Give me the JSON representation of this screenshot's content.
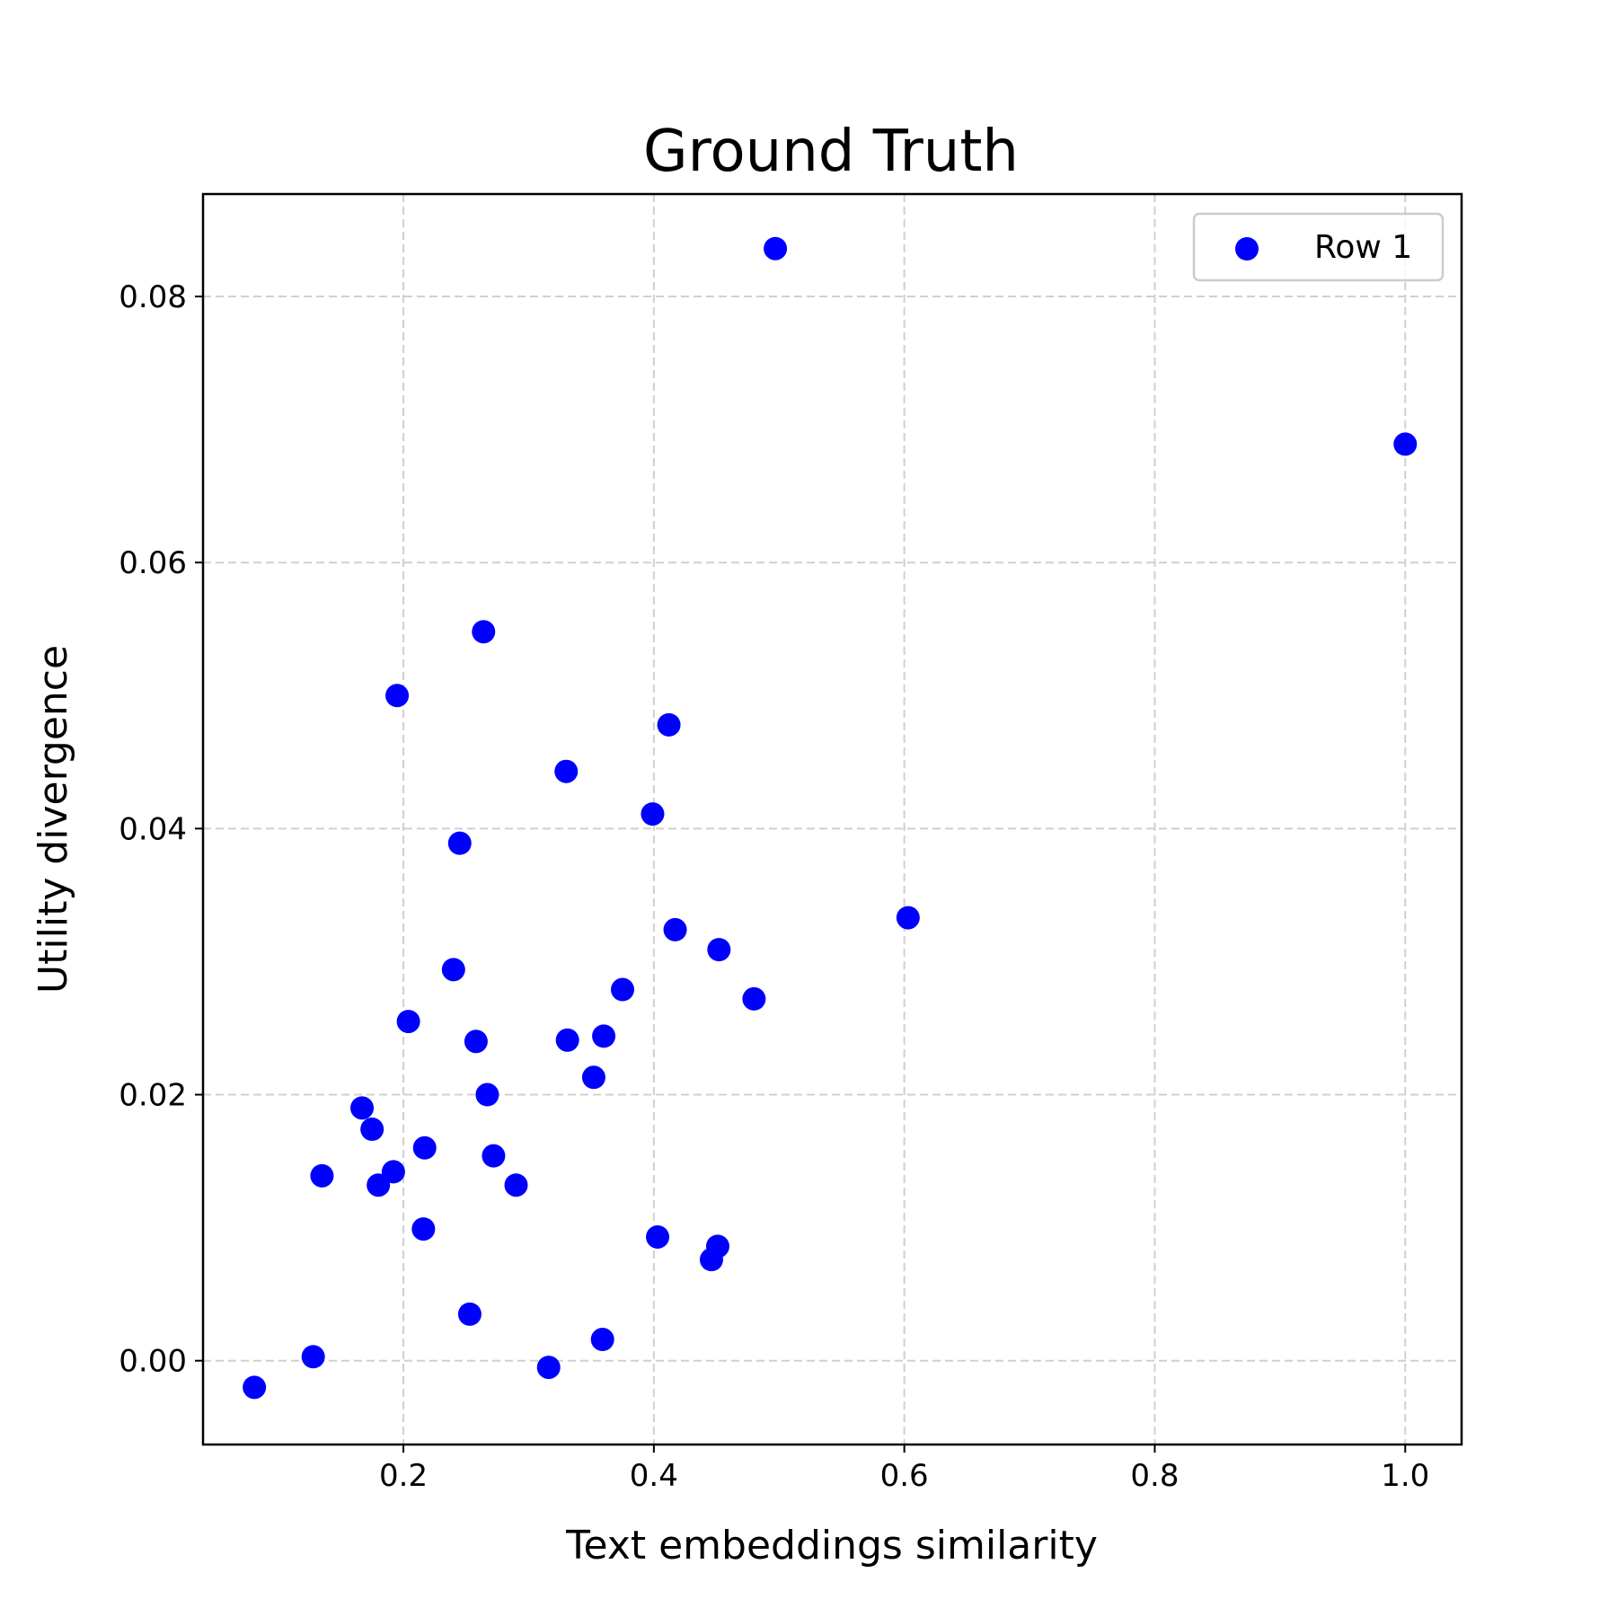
{
  "chart_data": {
    "type": "scatter",
    "title": "Ground Truth",
    "xlabel": "Text embeddings similarity",
    "ylabel": "Utility divergence",
    "xlim": [
      0.04,
      1.045
    ],
    "ylim": [
      -0.0063,
      0.0877
    ],
    "xticks": [
      0.2,
      0.4,
      0.6,
      0.8,
      1.0
    ],
    "xtick_labels": [
      "0.2",
      "0.4",
      "0.6",
      "0.8",
      "1.0"
    ],
    "yticks": [
      0.0,
      0.02,
      0.04,
      0.06,
      0.08
    ],
    "ytick_labels": [
      "0.00",
      "0.02",
      "0.04",
      "0.06",
      "0.08"
    ],
    "grid": true,
    "legend_position": "top-right",
    "colors": {
      "marker": "#0000ff"
    },
    "series": [
      {
        "name": "Row 1",
        "points": [
          [
            0.497,
            0.0836
          ],
          [
            1.0,
            0.0689
          ],
          [
            0.264,
            0.0548
          ],
          [
            0.195,
            0.05
          ],
          [
            0.412,
            0.0478
          ],
          [
            0.33,
            0.0443
          ],
          [
            0.399,
            0.0411
          ],
          [
            0.245,
            0.0389
          ],
          [
            0.603,
            0.0333
          ],
          [
            0.417,
            0.0324
          ],
          [
            0.452,
            0.0309
          ],
          [
            0.24,
            0.0294
          ],
          [
            0.375,
            0.0279
          ],
          [
            0.48,
            0.0272
          ],
          [
            0.204,
            0.0255
          ],
          [
            0.258,
            0.024
          ],
          [
            0.331,
            0.0241
          ],
          [
            0.36,
            0.0244
          ],
          [
            0.352,
            0.0213
          ],
          [
            0.267,
            0.02
          ],
          [
            0.167,
            0.019
          ],
          [
            0.175,
            0.0174
          ],
          [
            0.217,
            0.016
          ],
          [
            0.272,
            0.0154
          ],
          [
            0.135,
            0.0139
          ],
          [
            0.192,
            0.0142
          ],
          [
            0.18,
            0.0132
          ],
          [
            0.29,
            0.0132
          ],
          [
            0.216,
            0.0099
          ],
          [
            0.403,
            0.0093
          ],
          [
            0.451,
            0.0086
          ],
          [
            0.446,
            0.0076
          ],
          [
            0.253,
            0.0035
          ],
          [
            0.359,
            0.0016
          ],
          [
            0.128,
            0.0003
          ],
          [
            0.316,
            -0.0005
          ],
          [
            0.081,
            -0.002
          ]
        ]
      }
    ]
  }
}
